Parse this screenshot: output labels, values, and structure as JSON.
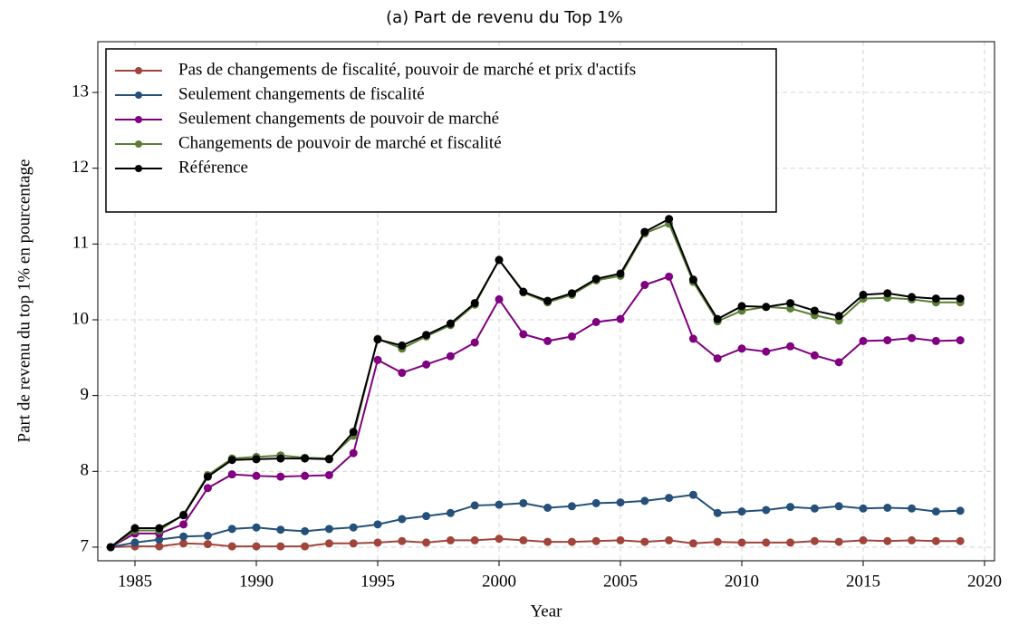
{
  "chart_data": {
    "type": "line",
    "title": "(a)  Part de revenu du Top 1%",
    "x_label": "Year",
    "y_label": "Part de revenu du top 1% en pourcentage",
    "x": [
      1984,
      1985,
      1986,
      1987,
      1988,
      1989,
      1990,
      1991,
      1992,
      1993,
      1994,
      1995,
      1996,
      1997,
      1998,
      1999,
      2000,
      2001,
      2002,
      2003,
      2004,
      2005,
      2006,
      2007,
      2008,
      2009,
      2010,
      2011,
      2012,
      2013,
      2014,
      2015,
      2016,
      2017,
      2018,
      2019
    ],
    "series": [
      {
        "name": "Pas de changements de fiscalité, pouvoir de marché et prix d'actifs",
        "color": "#a0443c",
        "values": [
          7.0,
          7.01,
          7.01,
          7.05,
          7.04,
          7.01,
          7.01,
          7.01,
          7.01,
          7.05,
          7.05,
          7.06,
          7.08,
          7.06,
          7.09,
          7.09,
          7.11,
          7.09,
          7.07,
          7.07,
          7.08,
          7.09,
          7.07,
          7.09,
          7.05,
          7.07,
          7.06,
          7.06,
          7.06,
          7.08,
          7.07,
          7.09,
          7.08,
          7.09,
          7.08,
          7.08
        ]
      },
      {
        "name": "Seulement changements de fiscalité",
        "color": "#24507a",
        "values": [
          7.0,
          7.06,
          7.1,
          7.14,
          7.15,
          7.24,
          7.26,
          7.23,
          7.21,
          7.24,
          7.26,
          7.3,
          7.37,
          7.41,
          7.45,
          7.55,
          7.56,
          7.58,
          7.52,
          7.54,
          7.58,
          7.59,
          7.61,
          7.65,
          7.69,
          7.45,
          7.47,
          7.49,
          7.53,
          7.51,
          7.54,
          7.51,
          7.52,
          7.51,
          7.47,
          7.48
        ]
      },
      {
        "name": "Seulement changements de pouvoir de marché",
        "color": "#800080",
        "values": [
          7.0,
          7.18,
          7.18,
          7.3,
          7.78,
          7.96,
          7.94,
          7.93,
          7.94,
          7.95,
          8.24,
          9.47,
          9.3,
          9.41,
          9.52,
          9.7,
          10.27,
          9.81,
          9.72,
          9.78,
          9.97,
          10.01,
          10.46,
          10.57,
          9.75,
          9.49,
          9.62,
          9.58,
          9.65,
          9.53,
          9.44,
          9.72,
          9.73,
          9.76,
          9.72,
          9.73
        ]
      },
      {
        "name": "Changements de pouvoir de marché et fiscalité",
        "color": "#5a7f35",
        "values": [
          7.0,
          7.22,
          7.22,
          7.43,
          7.95,
          8.17,
          8.19,
          8.21,
          8.18,
          8.17,
          8.47,
          9.75,
          9.62,
          9.78,
          9.93,
          10.2,
          10.79,
          10.36,
          10.23,
          10.33,
          10.52,
          10.58,
          11.14,
          11.27,
          10.5,
          9.98,
          10.12,
          10.17,
          10.15,
          10.06,
          9.99,
          10.28,
          10.29,
          10.27,
          10.23,
          10.23
        ]
      },
      {
        "name": "Référence",
        "color": "#000000",
        "values": [
          7.0,
          7.25,
          7.25,
          7.42,
          7.93,
          8.15,
          8.16,
          8.17,
          8.17,
          8.16,
          8.52,
          9.74,
          9.66,
          9.8,
          9.95,
          10.22,
          10.79,
          10.37,
          10.25,
          10.35,
          10.54,
          10.61,
          11.16,
          11.33,
          10.53,
          10.01,
          10.18,
          10.17,
          10.22,
          10.12,
          10.05,
          10.33,
          10.35,
          10.3,
          10.28,
          10.28
        ]
      }
    ],
    "xlim": [
      1983.47,
      2020.41
    ],
    "ylim": [
      6.82,
      13.67
    ],
    "xticks": [
      1985,
      1990,
      1995,
      2000,
      2005,
      2010,
      2015,
      2020
    ],
    "yticks": [
      7,
      8,
      9,
      10,
      11,
      12,
      13
    ],
    "grid": true,
    "legend": "top-left"
  }
}
